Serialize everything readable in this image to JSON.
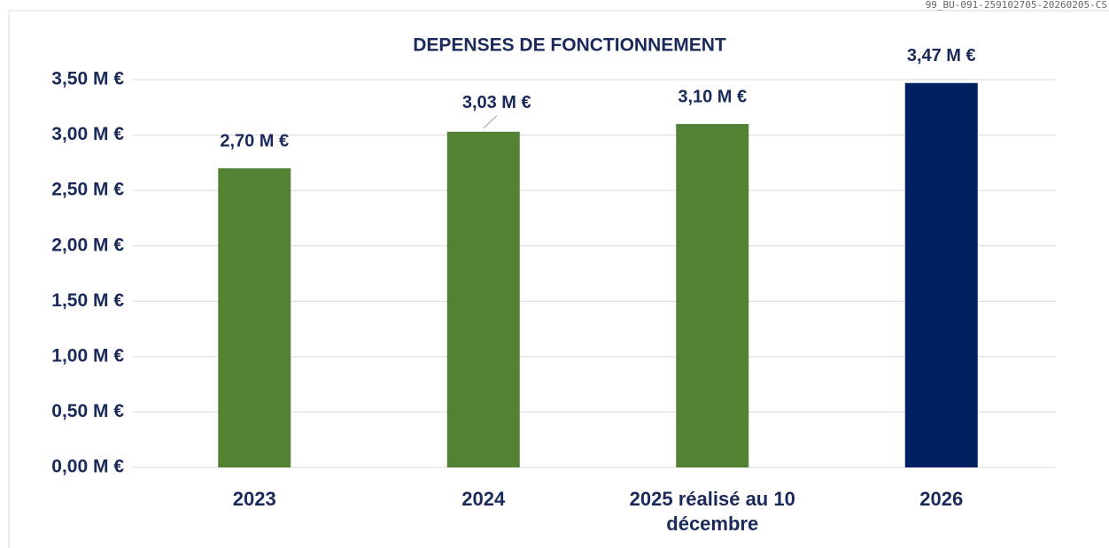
{
  "header": {
    "code": "99_BU-091-259102705-20260205-CS"
  },
  "chart_data": {
    "type": "bar",
    "title": "DEPENSES DE FONCTIONNEMENT",
    "categories": [
      "2023",
      "2024",
      "2025 réalisé au 10 décembre",
      "2026"
    ],
    "values": [
      2.7,
      3.03,
      3.1,
      3.47
    ],
    "value_labels": [
      "2,70 M €",
      "3,03 M €",
      "3,10 M €",
      "3,47 M €"
    ],
    "colors": [
      "#548235",
      "#548235",
      "#548235",
      "#002060"
    ],
    "ylim": [
      0,
      3.5
    ],
    "yticks": [
      {
        "value": 0,
        "label": "0,00 M €"
      },
      {
        "value": 0.5,
        "label": "0,50 M €"
      },
      {
        "value": 1,
        "label": "1,00 M €"
      },
      {
        "value": 1.5,
        "label": "1,50 M €"
      },
      {
        "value": 2,
        "label": "2,00 M €"
      },
      {
        "value": 2.5,
        "label": "2,50 M €"
      },
      {
        "value": 3,
        "label": "3,00 M €"
      },
      {
        "value": 3.5,
        "label": "3,50 M €"
      }
    ],
    "grid": true
  }
}
